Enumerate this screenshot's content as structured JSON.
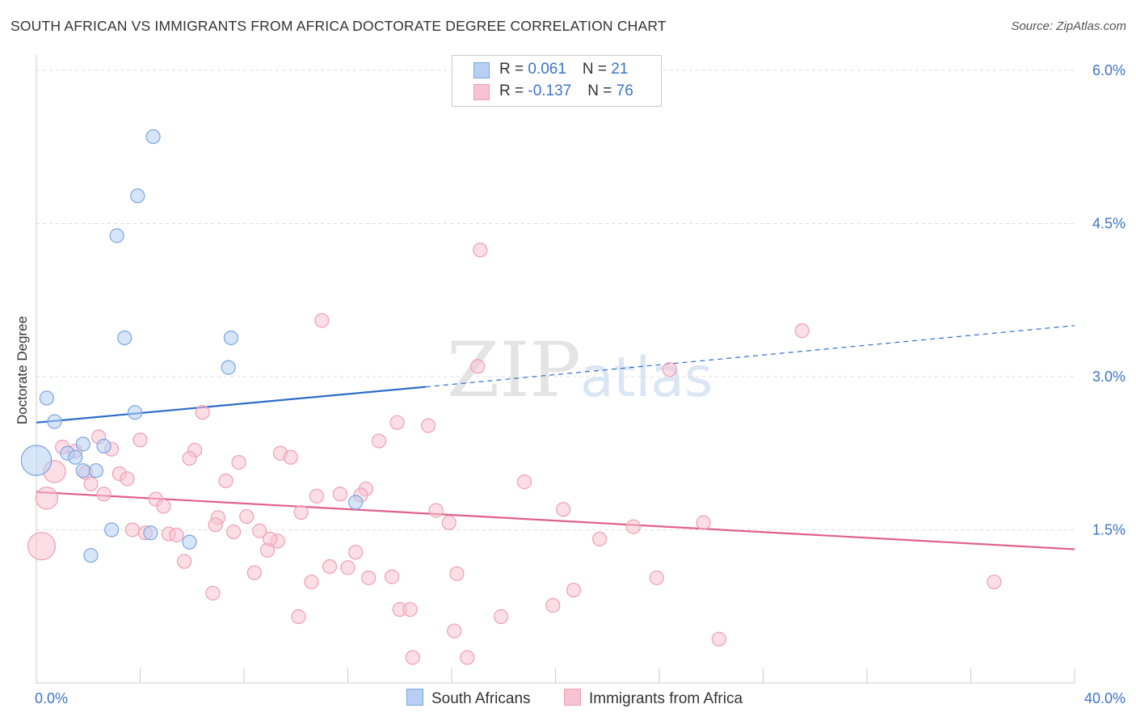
{
  "title": "SOUTH AFRICAN VS IMMIGRANTS FROM AFRICA DOCTORATE DEGREE CORRELATION CHART",
  "source": "Source: ZipAtlas.com",
  "watermark": {
    "zip": "ZIP",
    "atlas": "atlas"
  },
  "legend": {
    "rows": [
      {
        "r_label": "R = ",
        "r_value": "0.061",
        "n_label": "N = ",
        "n_value": "21"
      },
      {
        "r_label": "R = ",
        "r_value": "-0.137",
        "n_label": "N = ",
        "n_value": "76"
      }
    ]
  },
  "bottom_legend": {
    "series1": "South Africans",
    "series2": "Immigrants from Africa"
  },
  "colors": {
    "blue_fill": "#b7cff2",
    "blue_stroke": "#7aa6df",
    "blue_line": "#2c6dc9",
    "pink_fill": "#f7c3d2",
    "pink_stroke": "#ee9fb6",
    "pink_line": "#e0608c",
    "tick_label": "#3d74c7"
  },
  "chart_data": {
    "type": "scatter",
    "title": "SOUTH AFRICAN VS IMMIGRANTS FROM AFRICA DOCTORATE DEGREE CORRELATION CHART",
    "xlabel": "",
    "ylabel": "Doctorate Degree",
    "xlim": [
      0,
      40
    ],
    "ylim": [
      0,
      6.15
    ],
    "x_tick_labels": [
      {
        "value": 0,
        "label": "0.0%"
      },
      {
        "value": 40,
        "label": "40.0%"
      }
    ],
    "y_tick_labels": [
      {
        "value": 1.5,
        "label": "1.5%"
      },
      {
        "value": 3.0,
        "label": "3.0%"
      },
      {
        "value": 4.5,
        "label": "4.5%"
      },
      {
        "value": 6.0,
        "label": "6.0%"
      }
    ],
    "grid": true,
    "legend_position": "top-center",
    "series": [
      {
        "name": "South Africans",
        "R": 0.061,
        "N": 21,
        "trend": {
          "x0": 0,
          "y0": 2.55,
          "x1": 15,
          "y1": 2.9,
          "dash_to_x": 40,
          "dash_to_y": 3.5
        },
        "points": [
          {
            "x": 4.5,
            "y": 5.35,
            "s": 1
          },
          {
            "x": 3.9,
            "y": 4.77,
            "s": 1
          },
          {
            "x": 3.1,
            "y": 4.38,
            "s": 1
          },
          {
            "x": 3.4,
            "y": 3.38,
            "s": 1
          },
          {
            "x": 7.5,
            "y": 3.38,
            "s": 1
          },
          {
            "x": 7.4,
            "y": 3.09,
            "s": 1
          },
          {
            "x": 0.4,
            "y": 2.79,
            "s": 1
          },
          {
            "x": 3.8,
            "y": 2.65,
            "s": 1
          },
          {
            "x": 0.7,
            "y": 2.56,
            "s": 1
          },
          {
            "x": 0.0,
            "y": 2.18,
            "s": 2.2
          },
          {
            "x": 1.8,
            "y": 2.34,
            "s": 1
          },
          {
            "x": 2.6,
            "y": 2.32,
            "s": 1
          },
          {
            "x": 1.2,
            "y": 2.25,
            "s": 1
          },
          {
            "x": 1.5,
            "y": 2.21,
            "s": 1
          },
          {
            "x": 1.8,
            "y": 2.08,
            "s": 1
          },
          {
            "x": 2.3,
            "y": 2.08,
            "s": 1
          },
          {
            "x": 12.3,
            "y": 1.77,
            "s": 1
          },
          {
            "x": 2.9,
            "y": 1.5,
            "s": 1
          },
          {
            "x": 4.4,
            "y": 1.47,
            "s": 1
          },
          {
            "x": 5.9,
            "y": 1.38,
            "s": 1
          },
          {
            "x": 2.1,
            "y": 1.25,
            "s": 1
          }
        ]
      },
      {
        "name": "Immigrants from Africa",
        "R": -0.137,
        "N": 76,
        "trend": {
          "x0": 0,
          "y0": 1.87,
          "x1": 40,
          "y1": 1.31
        },
        "points": [
          {
            "x": 17.1,
            "y": 4.24,
            "s": 1
          },
          {
            "x": 11.0,
            "y": 3.55,
            "s": 1
          },
          {
            "x": 29.5,
            "y": 3.45,
            "s": 1
          },
          {
            "x": 17.0,
            "y": 3.1,
            "s": 1
          },
          {
            "x": 24.4,
            "y": 3.07,
            "s": 1
          },
          {
            "x": 6.4,
            "y": 2.65,
            "s": 1
          },
          {
            "x": 13.9,
            "y": 2.55,
            "s": 1
          },
          {
            "x": 15.1,
            "y": 2.52,
            "s": 1
          },
          {
            "x": 2.4,
            "y": 2.41,
            "s": 1
          },
          {
            "x": 4.0,
            "y": 2.38,
            "s": 1
          },
          {
            "x": 13.2,
            "y": 2.37,
            "s": 1
          },
          {
            "x": 1.0,
            "y": 2.31,
            "s": 1
          },
          {
            "x": 1.5,
            "y": 2.27,
            "s": 1
          },
          {
            "x": 2.9,
            "y": 2.29,
            "s": 1
          },
          {
            "x": 6.1,
            "y": 2.28,
            "s": 1
          },
          {
            "x": 9.4,
            "y": 2.25,
            "s": 1
          },
          {
            "x": 9.8,
            "y": 2.21,
            "s": 1
          },
          {
            "x": 5.9,
            "y": 2.2,
            "s": 1
          },
          {
            "x": 7.8,
            "y": 2.16,
            "s": 1
          },
          {
            "x": 0.7,
            "y": 2.07,
            "s": 1.6
          },
          {
            "x": 3.2,
            "y": 2.05,
            "s": 1
          },
          {
            "x": 1.9,
            "y": 2.06,
            "s": 1
          },
          {
            "x": 3.5,
            "y": 2.0,
            "s": 1
          },
          {
            "x": 7.3,
            "y": 1.98,
            "s": 1
          },
          {
            "x": 18.8,
            "y": 1.97,
            "s": 1
          },
          {
            "x": 2.1,
            "y": 1.95,
            "s": 1
          },
          {
            "x": 12.7,
            "y": 1.9,
            "s": 1
          },
          {
            "x": 11.7,
            "y": 1.85,
            "s": 1
          },
          {
            "x": 2.6,
            "y": 1.85,
            "s": 1
          },
          {
            "x": 10.8,
            "y": 1.83,
            "s": 1
          },
          {
            "x": 12.5,
            "y": 1.84,
            "s": 1
          },
          {
            "x": 0.4,
            "y": 1.81,
            "s": 1.6
          },
          {
            "x": 4.6,
            "y": 1.8,
            "s": 1
          },
          {
            "x": 4.9,
            "y": 1.73,
            "s": 1
          },
          {
            "x": 20.3,
            "y": 1.7,
            "s": 1
          },
          {
            "x": 15.4,
            "y": 1.69,
            "s": 1
          },
          {
            "x": 10.2,
            "y": 1.67,
            "s": 1
          },
          {
            "x": 8.1,
            "y": 1.63,
            "s": 1
          },
          {
            "x": 7.0,
            "y": 1.62,
            "s": 1
          },
          {
            "x": 15.9,
            "y": 1.57,
            "s": 1
          },
          {
            "x": 25.7,
            "y": 1.57,
            "s": 1
          },
          {
            "x": 23.0,
            "y": 1.53,
            "s": 1
          },
          {
            "x": 3.7,
            "y": 1.5,
            "s": 1
          },
          {
            "x": 8.6,
            "y": 1.49,
            "s": 1
          },
          {
            "x": 7.6,
            "y": 1.48,
            "s": 1
          },
          {
            "x": 4.2,
            "y": 1.47,
            "s": 1
          },
          {
            "x": 5.1,
            "y": 1.46,
            "s": 1
          },
          {
            "x": 5.4,
            "y": 1.45,
            "s": 1
          },
          {
            "x": 21.7,
            "y": 1.41,
            "s": 1
          },
          {
            "x": 9.3,
            "y": 1.39,
            "s": 1
          },
          {
            "x": 0.2,
            "y": 1.34,
            "s": 2.0
          },
          {
            "x": 8.9,
            "y": 1.3,
            "s": 1
          },
          {
            "x": 12.3,
            "y": 1.28,
            "s": 1
          },
          {
            "x": 5.7,
            "y": 1.19,
            "s": 1
          },
          {
            "x": 11.3,
            "y": 1.14,
            "s": 1
          },
          {
            "x": 12.0,
            "y": 1.13,
            "s": 1
          },
          {
            "x": 8.4,
            "y": 1.08,
            "s": 1
          },
          {
            "x": 16.2,
            "y": 1.07,
            "s": 1
          },
          {
            "x": 13.7,
            "y": 1.04,
            "s": 1
          },
          {
            "x": 12.8,
            "y": 1.03,
            "s": 1
          },
          {
            "x": 23.9,
            "y": 1.03,
            "s": 1
          },
          {
            "x": 10.6,
            "y": 0.99,
            "s": 1
          },
          {
            "x": 36.9,
            "y": 0.99,
            "s": 1
          },
          {
            "x": 20.7,
            "y": 0.91,
            "s": 1
          },
          {
            "x": 6.8,
            "y": 0.88,
            "s": 1
          },
          {
            "x": 19.9,
            "y": 0.76,
            "s": 1
          },
          {
            "x": 14.0,
            "y": 0.72,
            "s": 1
          },
          {
            "x": 14.4,
            "y": 0.72,
            "s": 1
          },
          {
            "x": 10.1,
            "y": 0.65,
            "s": 1
          },
          {
            "x": 17.9,
            "y": 0.65,
            "s": 1
          },
          {
            "x": 16.1,
            "y": 0.51,
            "s": 1
          },
          {
            "x": 26.3,
            "y": 0.43,
            "s": 1
          },
          {
            "x": 14.5,
            "y": 0.25,
            "s": 1
          },
          {
            "x": 16.6,
            "y": 0.25,
            "s": 1
          },
          {
            "x": 9.0,
            "y": 1.41,
            "s": 1
          },
          {
            "x": 6.9,
            "y": 1.55,
            "s": 1
          }
        ]
      }
    ]
  }
}
